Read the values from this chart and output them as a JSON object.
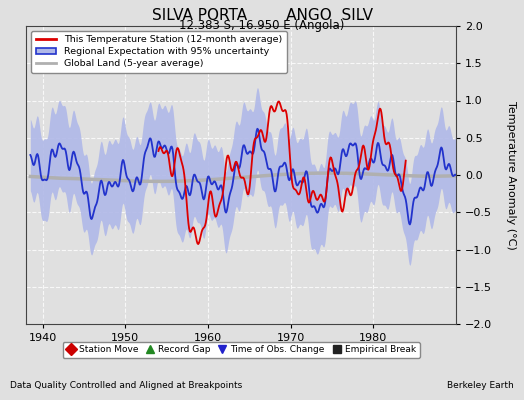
{
  "title": "SILVA PORTA        ANGO  SILV",
  "subtitle": "12.383 S, 16.950 E (Angola)",
  "ylabel": "Temperature Anomaly (°C)",
  "xlabel_note": "Data Quality Controlled and Aligned at Breakpoints",
  "credit": "Berkeley Earth",
  "ylim": [
    -2,
    2
  ],
  "xlim": [
    1938,
    1990
  ],
  "xticks": [
    1940,
    1950,
    1960,
    1970,
    1980
  ],
  "yticks": [
    -2,
    -1.5,
    -1,
    -0.5,
    0,
    0.5,
    1,
    1.5,
    2
  ],
  "bg_color": "#e0e0e0",
  "plot_bg_color": "#e0e0e0",
  "station_color": "#dd0000",
  "regional_color": "#2233cc",
  "regional_fill_color": "#b0b8e8",
  "global_color": "#b0b0b0",
  "legend_items": [
    "This Temperature Station (12-month average)",
    "Regional Expectation with 95% uncertainty",
    "Global Land (5-year average)"
  ],
  "bottom_legend": [
    {
      "label": "Station Move",
      "color": "#cc0000",
      "marker": "D"
    },
    {
      "label": "Record Gap",
      "color": "#228822",
      "marker": "^"
    },
    {
      "label": "Time of Obs. Change",
      "color": "#2222cc",
      "marker": "v"
    },
    {
      "label": "Empirical Break",
      "color": "#222222",
      "marker": "s"
    }
  ],
  "title_fontsize": 11,
  "subtitle_fontsize": 8.5,
  "tick_fontsize": 8,
  "ylabel_fontsize": 8
}
